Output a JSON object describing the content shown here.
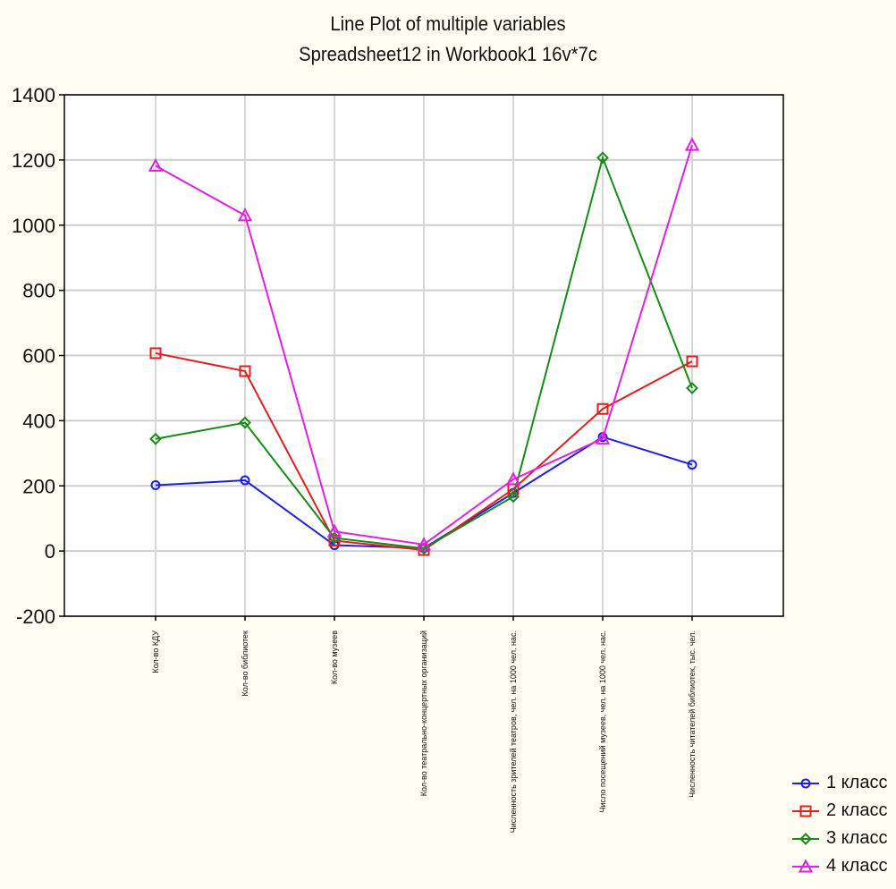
{
  "chart_data": {
    "type": "line",
    "title": "Line Plot of multiple variables",
    "subtitle": "Spreadsheet12 in Workbook1 16v*7c",
    "categories": [
      "Кол-во КДУ",
      "Кол-во библиотек",
      "Кол-во музеев",
      "Кол-во театрально-концертных организаций",
      "Численность зрителей театров, чел. на 1000 чел. нас.",
      "Число посещений музеев, чел. на 1000 чел. нас.",
      "Численность читателей библиотек, тыс. чел."
    ],
    "ylim": [
      -200,
      1400
    ],
    "yticks": [
      -200,
      0,
      200,
      400,
      600,
      800,
      1000,
      1200,
      1400
    ],
    "grid": true,
    "legend_position": "bottom-right",
    "series": [
      {
        "name": "1 класс",
        "color": "#1f1fe0",
        "marker": "circle",
        "values": [
          202,
          217,
          18,
          9,
          178,
          350,
          265
        ]
      },
      {
        "name": "2 класс",
        "color": "#e01f1f",
        "marker": "square",
        "values": [
          607,
          552,
          32,
          3,
          190,
          436,
          582
        ]
      },
      {
        "name": "3 класс",
        "color": "#178a17",
        "marker": "diamond",
        "values": [
          344,
          394,
          40,
          8,
          167,
          1207,
          500
        ]
      },
      {
        "name": "4 класс",
        "color": "#e020e0",
        "marker": "triangle",
        "values": [
          1182,
          1030,
          60,
          20,
          220,
          345,
          1246
        ]
      }
    ]
  }
}
